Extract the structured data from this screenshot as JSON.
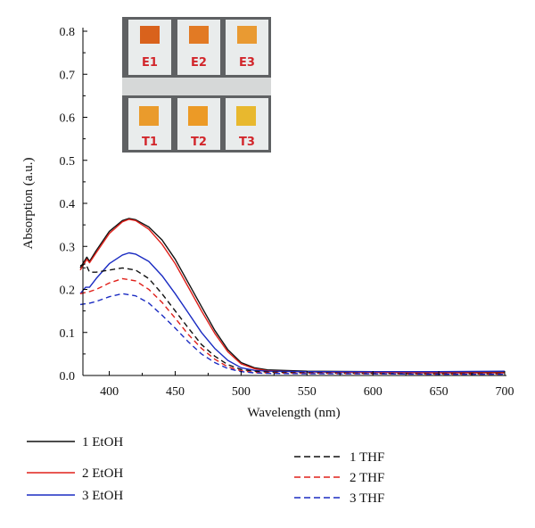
{
  "chart_data": {
    "type": "line",
    "xlabel": "Wavelength (nm)",
    "ylabel": "Absorption (a.u.)",
    "xlim": [
      380,
      700
    ],
    "ylim": [
      0.0,
      0.8
    ],
    "x_ticks": [
      "400",
      "450",
      "500",
      "550",
      "600",
      "650",
      "700"
    ],
    "y_ticks": [
      "0.0",
      "0.1",
      "0.2",
      "0.3",
      "0.4",
      "0.5",
      "0.6",
      "0.7",
      "0.8"
    ],
    "grid": false,
    "legend_position": "bottom",
    "series": [
      {
        "name": "1 EtOH",
        "color": "#111111",
        "dash": false,
        "x": [
          378,
          383,
          385,
          390,
          400,
          410,
          415,
          420,
          430,
          440,
          450,
          460,
          470,
          480,
          490,
          500,
          510,
          520,
          550,
          600,
          650,
          700
        ],
        "y": [
          0.25,
          0.275,
          0.265,
          0.29,
          0.335,
          0.36,
          0.365,
          0.362,
          0.345,
          0.315,
          0.27,
          0.215,
          0.16,
          0.105,
          0.06,
          0.03,
          0.018,
          0.013,
          0.01,
          0.009,
          0.008,
          0.008
        ]
      },
      {
        "name": "2 EtOH",
        "color": "#e0201a",
        "dash": false,
        "x": [
          378,
          383,
          385,
          390,
          400,
          410,
          415,
          420,
          430,
          440,
          450,
          460,
          470,
          480,
          490,
          500,
          510,
          520,
          550,
          600,
          650,
          700
        ],
        "y": [
          0.245,
          0.27,
          0.262,
          0.285,
          0.33,
          0.357,
          0.363,
          0.36,
          0.34,
          0.305,
          0.26,
          0.205,
          0.15,
          0.098,
          0.055,
          0.027,
          0.016,
          0.011,
          0.008,
          0.007,
          0.006,
          0.006
        ]
      },
      {
        "name": "3 EtOH",
        "color": "#1a2bc2",
        "dash": false,
        "x": [
          378,
          382,
          385,
          390,
          400,
          410,
          415,
          420,
          430,
          440,
          450,
          460,
          470,
          480,
          490,
          500,
          510,
          520,
          550,
          600,
          650,
          700
        ],
        "y": [
          0.19,
          0.205,
          0.205,
          0.225,
          0.26,
          0.28,
          0.285,
          0.282,
          0.265,
          0.232,
          0.19,
          0.145,
          0.1,
          0.063,
          0.035,
          0.018,
          0.012,
          0.01,
          0.009,
          0.009,
          0.009,
          0.01
        ]
      },
      {
        "name": "1 THF",
        "color": "#111111",
        "dash": true,
        "x": [
          378,
          382,
          385,
          390,
          400,
          410,
          420,
          430,
          440,
          450,
          460,
          470,
          480,
          490,
          500,
          510,
          520,
          550,
          600,
          650,
          700
        ],
        "y": [
          0.255,
          0.26,
          0.24,
          0.24,
          0.245,
          0.25,
          0.245,
          0.225,
          0.19,
          0.15,
          0.11,
          0.072,
          0.045,
          0.025,
          0.014,
          0.01,
          0.008,
          0.006,
          0.005,
          0.004,
          0.004
        ]
      },
      {
        "name": "2 THF",
        "color": "#e0201a",
        "dash": true,
        "x": [
          378,
          385,
          390,
          400,
          410,
          420,
          430,
          440,
          450,
          460,
          470,
          480,
          490,
          500,
          510,
          520,
          550,
          600,
          650,
          700
        ],
        "y": [
          0.19,
          0.195,
          0.2,
          0.215,
          0.225,
          0.22,
          0.2,
          0.17,
          0.133,
          0.095,
          0.063,
          0.038,
          0.02,
          0.011,
          0.007,
          0.006,
          0.005,
          0.004,
          0.003,
          0.003
        ]
      },
      {
        "name": "3 THF",
        "color": "#1a2bc2",
        "dash": true,
        "x": [
          378,
          385,
          390,
          400,
          410,
          420,
          430,
          440,
          450,
          460,
          470,
          480,
          490,
          500,
          510,
          520,
          550,
          600,
          650,
          700
        ],
        "y": [
          0.165,
          0.168,
          0.172,
          0.183,
          0.19,
          0.185,
          0.168,
          0.14,
          0.11,
          0.078,
          0.05,
          0.03,
          0.016,
          0.009,
          0.006,
          0.005,
          0.004,
          0.004,
          0.003,
          0.003
        ]
      }
    ],
    "inset_photo": {
      "labels_top": [
        "E1",
        "E2",
        "E3"
      ],
      "labels_bottom": [
        "T1",
        "T2",
        "T3"
      ],
      "swatches_top": [
        "#d9621c",
        "#e27a24",
        "#e99a32"
      ],
      "swatches_bottom": [
        "#ea9b2c",
        "#ec9a26",
        "#e8b82e"
      ],
      "label_color": "#d2262b"
    }
  }
}
